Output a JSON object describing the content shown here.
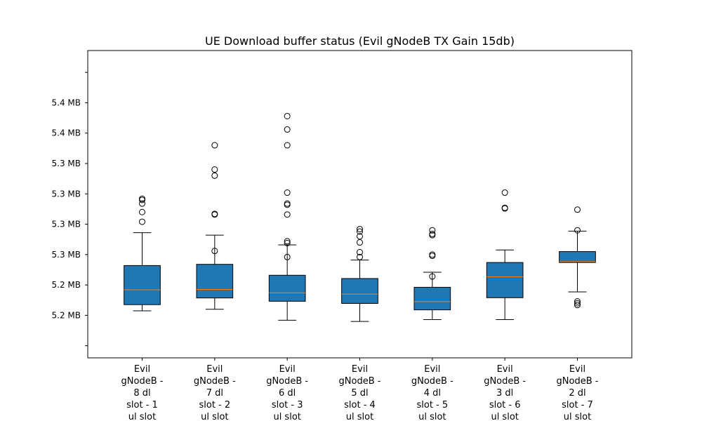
{
  "colors": {
    "box_fill": "#1f77b4",
    "median": "#ff7f0e",
    "edge": "#000000",
    "background": "#ffffff"
  },
  "chart_data": {
    "type": "box",
    "title": "UE Download buffer status (Evil gNodeB TX Gain 15db)",
    "xlabel": "",
    "ylabel": "",
    "y_unit_note": "values are in bytes; tick labels printed as MB rounded to one decimal",
    "ylim": [
      5160000,
      5413000
    ],
    "y_ticks": [
      5170000,
      5195000,
      5220000,
      5245000,
      5270000,
      5295000,
      5320000,
      5345000,
      5370000,
      5395000
    ],
    "y_tick_labels": [
      "",
      "5.2 MB",
      "5.2 MB",
      "5.3 MB",
      "5.3 MB",
      "5.3 MB",
      "5.3 MB",
      "5.4 MB",
      "5.4 MB",
      ""
    ],
    "grid": false,
    "legend": "none",
    "categories": [
      [
        "Evil",
        "gNodeB -",
        "8 dl",
        "slot - 1",
        "ul slot"
      ],
      [
        "Evil",
        "gNodeB -",
        "7 dl",
        "slot - 2",
        "ul slot"
      ],
      [
        "Evil",
        "gNodeB -",
        "6 dl",
        "slot - 3",
        "ul slot"
      ],
      [
        "Evil",
        "gNodeB -",
        "5 dl",
        "slot - 4",
        "ul slot"
      ],
      [
        "Evil",
        "gNodeB -",
        "4 dl",
        "slot - 5",
        "ul slot"
      ],
      [
        "Evil",
        "gNodeB -",
        "3 dl",
        "slot - 6",
        "ul slot"
      ],
      [
        "Evil",
        "gNodeB -",
        "2 dl",
        "slot - 7",
        "ul slot"
      ]
    ],
    "boxes": [
      {
        "whisker_low": 5198700,
        "q1": 5203800,
        "median": 5216000,
        "q3": 5236000,
        "whisker_high": 5263000,
        "outliers": [
          5272000,
          5280000,
          5287000,
          5290000,
          5291000
        ]
      },
      {
        "whisker_low": 5200000,
        "q1": 5209300,
        "median": 5216300,
        "q3": 5237000,
        "whisker_high": 5261000,
        "outliers": [
          5248000,
          5278000,
          5278500,
          5310000,
          5315000,
          5335000
        ]
      },
      {
        "whisker_low": 5191000,
        "q1": 5206600,
        "median": 5213600,
        "q3": 5228000,
        "whisker_high": 5253000,
        "outliers": [
          5243000,
          5254500,
          5256000,
          5278000,
          5286000,
          5287000,
          5296000,
          5335000,
          5348000,
          5359000
        ]
      },
      {
        "whisker_low": 5190000,
        "q1": 5204800,
        "median": 5212500,
        "q3": 5225300,
        "whisker_high": 5240500,
        "outliers": [
          5243000,
          5247000,
          5255000,
          5260000,
          5264000,
          5266000
        ]
      },
      {
        "whisker_low": 5191500,
        "q1": 5199500,
        "median": 5206300,
        "q3": 5218100,
        "whisker_high": 5230500,
        "outliers": [
          5227000,
          5244000,
          5245000,
          5261000,
          5262000,
          5265000
        ]
      },
      {
        "whisker_low": 5191500,
        "q1": 5209500,
        "median": 5226700,
        "q3": 5238500,
        "whisker_high": 5248800,
        "outliers": [
          5283000,
          5283500,
          5296000
        ]
      },
      {
        "whisker_low": 5214300,
        "q1": 5238500,
        "median": 5239300,
        "q3": 5247500,
        "whisker_high": 5264300,
        "outliers": [
          5203500,
          5205000,
          5206500,
          5265000,
          5282000
        ]
      }
    ]
  }
}
